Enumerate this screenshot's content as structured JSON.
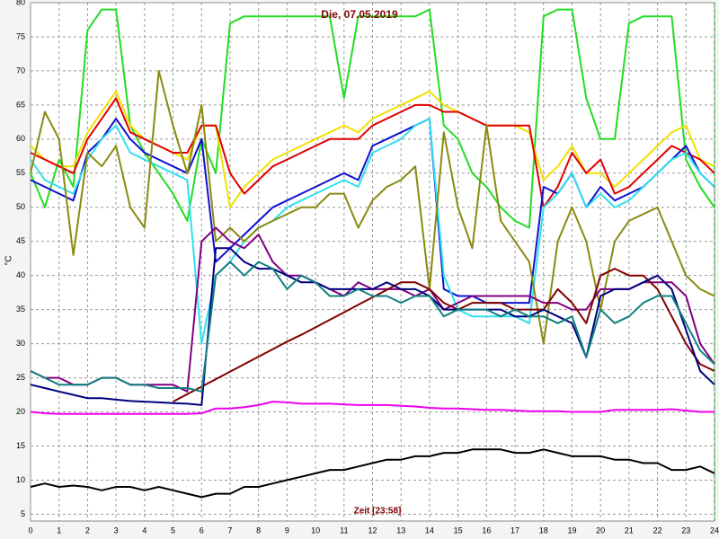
{
  "chart_data": {
    "type": "line",
    "title": "Die, 07.05.2019",
    "x_label": "Zeit [23:58]",
    "y_label": "°C",
    "x": [
      0,
      0.5,
      1,
      1.5,
      2,
      2.5,
      3,
      3.5,
      4,
      4.5,
      5,
      5.5,
      6,
      6.5,
      7,
      7.5,
      8,
      8.5,
      9,
      9.5,
      10,
      10.5,
      11,
      11.5,
      12,
      12.5,
      13,
      13.5,
      14,
      14.5,
      15,
      15.5,
      16,
      16.5,
      17,
      17.5,
      18,
      18.5,
      19,
      19.5,
      20,
      20.5,
      21,
      21.5,
      22,
      22.5,
      23,
      23.5,
      24
    ],
    "xlim": [
      0,
      24
    ],
    "xticks": [
      0,
      1,
      2,
      3,
      4,
      5,
      6,
      7,
      8,
      9,
      10,
      11,
      12,
      13,
      14,
      15,
      16,
      17,
      18,
      19,
      20,
      21,
      22,
      23,
      24
    ],
    "ylim": [
      4,
      80
    ],
    "yticks": [
      5,
      10,
      15,
      20,
      25,
      30,
      35,
      40,
      45,
      50,
      55,
      60,
      65,
      70,
      75,
      80
    ],
    "grid": true,
    "series": [
      {
        "color": "#22dd22",
        "values": [
          55,
          50,
          57,
          53,
          76,
          79,
          79,
          62,
          58,
          55,
          52,
          48,
          60,
          55,
          77,
          78,
          78,
          78,
          78,
          78,
          78,
          78,
          66,
          78,
          78,
          78,
          78,
          78,
          79,
          62,
          60,
          55,
          53,
          50,
          48,
          47,
          78,
          79,
          79,
          66,
          60,
          60,
          77,
          78,
          78,
          78,
          57,
          53,
          50
        ]
      },
      {
        "color": "#f0e000",
        "values": [
          59,
          57,
          56,
          56,
          61,
          64,
          67,
          62,
          60,
          59,
          58,
          57,
          62,
          62,
          50,
          53,
          55,
          57,
          58,
          59,
          60,
          61,
          62,
          61,
          63,
          64,
          65,
          66,
          67,
          65,
          64,
          63,
          62,
          62,
          62,
          61,
          54,
          56,
          59,
          55,
          55,
          53,
          55,
          57,
          59,
          61,
          62,
          57,
          56
        ]
      },
      {
        "color": "#e00000",
        "values": [
          58,
          57,
          56,
          55,
          60,
          63,
          66,
          61,
          60,
          59,
          58,
          58,
          62,
          62,
          55,
          52,
          54,
          56,
          57,
          58,
          59,
          60,
          60,
          60,
          62,
          63,
          64,
          65,
          65,
          64,
          64,
          63,
          62,
          62,
          62,
          62,
          50,
          53,
          58,
          55,
          57,
          52,
          53,
          55,
          57,
          59,
          58,
          57,
          55
        ]
      },
      {
        "color": "#1010d0",
        "values": [
          54,
          53,
          52,
          51,
          58,
          60,
          63,
          60,
          58,
          57,
          56,
          55,
          60,
          42,
          44,
          46,
          48,
          50,
          51,
          52,
          53,
          54,
          55,
          54,
          59,
          60,
          61,
          62,
          63,
          38,
          37,
          37,
          36,
          36,
          36,
          36,
          53,
          52,
          55,
          50,
          53,
          51,
          52,
          53,
          55,
          57,
          59,
          55,
          53
        ]
      },
      {
        "color": "#30e0f0",
        "values": [
          57,
          54,
          53,
          52,
          57,
          60,
          62,
          58,
          57,
          56,
          55,
          54,
          30,
          40,
          42,
          45,
          47,
          48,
          50,
          51,
          52,
          53,
          54,
          53,
          58,
          59,
          60,
          62,
          63,
          40,
          35,
          34,
          34,
          34,
          34,
          33,
          50,
          52,
          55,
          50,
          52,
          50,
          51,
          53,
          55,
          57,
          58,
          55,
          53
        ]
      },
      {
        "color": "#8a8a10",
        "values": [
          55,
          64,
          60,
          43,
          58,
          56,
          59,
          50,
          47,
          70,
          62,
          55,
          65,
          45,
          47,
          45,
          47,
          48,
          49,
          50,
          50,
          52,
          52,
          47,
          51,
          53,
          54,
          56,
          38,
          61,
          50,
          44,
          62,
          48,
          45,
          42,
          30,
          45,
          50,
          45,
          35,
          45,
          48,
          49,
          50,
          45,
          40,
          38,
          37
        ]
      },
      {
        "color": "#800080",
        "values": [
          26,
          25,
          25,
          24,
          24,
          25,
          25,
          24,
          24,
          24,
          24,
          23,
          45,
          47,
          45,
          44,
          46,
          42,
          40,
          40,
          39,
          38,
          37,
          39,
          38,
          38,
          38,
          37,
          38,
          35,
          36,
          37,
          37,
          37,
          37,
          37,
          36,
          36,
          35,
          35,
          38,
          38,
          38,
          39,
          39,
          39,
          37,
          30,
          27
        ]
      },
      {
        "color": "#800000",
        "values": [
          null,
          null,
          null,
          null,
          null,
          null,
          null,
          null,
          null,
          null,
          21.5,
          22.6,
          23.7,
          24.8,
          25.9,
          27.0,
          28.1,
          29.2,
          30.3,
          31.3,
          32.4,
          33.5,
          34.6,
          35.7,
          36.8,
          37.9,
          39,
          39,
          38,
          36,
          35,
          36,
          36,
          36,
          35,
          35,
          35,
          38,
          36,
          33,
          40,
          41,
          40,
          40,
          38,
          34,
          30,
          27,
          26
        ]
      },
      {
        "color": "#000080",
        "values": [
          24,
          23.5,
          23,
          22.5,
          22,
          22,
          21.8,
          21.6,
          21.5,
          21.4,
          21.3,
          21.2,
          21,
          44,
          44,
          42,
          41,
          41,
          40,
          39,
          39,
          38,
          38,
          38,
          38,
          39,
          38,
          38,
          37,
          35,
          35,
          35,
          35,
          35,
          34,
          34,
          35,
          34,
          33,
          28,
          37,
          38,
          38,
          39,
          40,
          38,
          32,
          26,
          24
        ]
      },
      {
        "color": "#108080",
        "values": [
          26,
          25,
          24,
          24,
          24,
          25,
          25,
          24,
          24,
          23.5,
          23.5,
          23.5,
          23,
          40,
          42,
          40,
          42,
          41,
          38,
          40,
          39,
          37,
          37,
          38,
          37,
          37,
          36,
          37,
          37,
          34,
          35,
          35,
          35,
          34,
          35,
          34,
          34,
          33,
          34,
          28,
          35,
          33,
          34,
          36,
          37,
          37,
          33,
          29,
          27
        ]
      },
      {
        "color": "#ee00ee",
        "values": [
          20,
          19.8,
          19.7,
          19.7,
          19.7,
          19.7,
          19.7,
          19.7,
          19.7,
          19.7,
          19.7,
          19.7,
          19.8,
          20.5,
          20.5,
          20.7,
          21,
          21.5,
          21.4,
          21.2,
          21.2,
          21.2,
          21.1,
          21,
          21,
          21,
          20.9,
          20.8,
          20.6,
          20.5,
          20.5,
          20.4,
          20.3,
          20.3,
          20.2,
          20.1,
          20.1,
          20.1,
          20,
          20,
          20,
          20.3,
          20.3,
          20.3,
          20.3,
          20.4,
          20.2,
          20,
          20
        ]
      },
      {
        "color": "#000000",
        "values": [
          9,
          9.5,
          9,
          9.2,
          9,
          8.5,
          9,
          9,
          8.5,
          9,
          8.5,
          8,
          7.5,
          8,
          8,
          9,
          9,
          9.5,
          10,
          10.5,
          11,
          11.5,
          11.5,
          12,
          12.5,
          13,
          13,
          13.5,
          13.5,
          14,
          14,
          14.5,
          14.5,
          14.5,
          14,
          14,
          14.5,
          14,
          13.5,
          13.5,
          13.5,
          13,
          13,
          12.5,
          12.5,
          11.5,
          11.5,
          12,
          11
        ]
      }
    ]
  }
}
